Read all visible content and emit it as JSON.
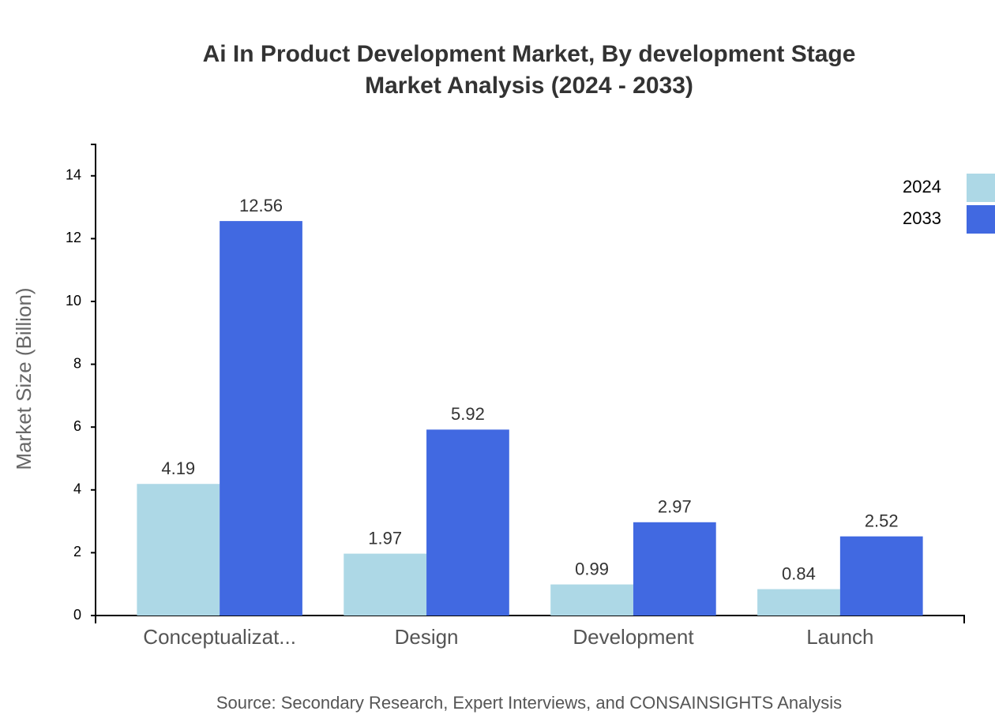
{
  "chart_data": {
    "type": "bar",
    "title": [
      "Ai In Product Development Market, By development Stage",
      "Market Analysis (2024 - 2033)"
    ],
    "y_label": "Market Size (Billion)",
    "source": "Source: Secondary Research, Expert Interviews, and CONSAINSIGHTS Analysis",
    "categories": [
      "Conceptualizat...",
      "Design",
      "Development",
      "Launch"
    ],
    "series": [
      {
        "name": "2024",
        "color": "#add8e6",
        "values": [
          4.19,
          1.97,
          0.99,
          0.84
        ]
      },
      {
        "name": "2033",
        "color": "#4169e1",
        "values": [
          12.56,
          5.92,
          2.97,
          2.52
        ]
      }
    ],
    "ylim": [
      0,
      15
    ],
    "yticks": [
      0,
      2,
      4,
      6,
      8,
      10,
      12,
      14
    ],
    "legend": "top-right"
  }
}
